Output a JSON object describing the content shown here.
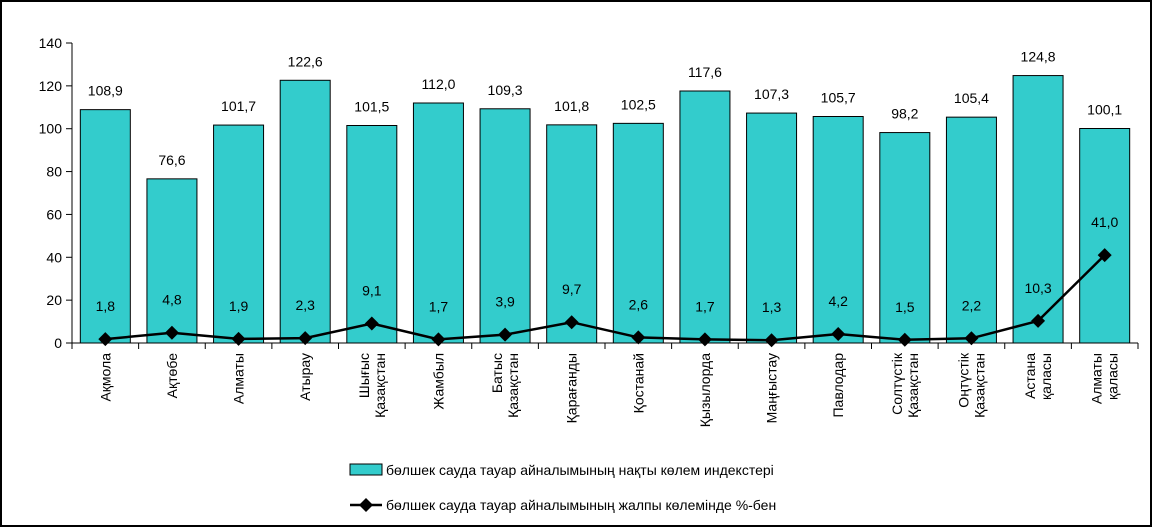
{
  "chart_data": {
    "type": "bar",
    "categories": [
      "Ақмола",
      "Ақтөбе",
      "Алматы",
      "Атырау",
      "Шығыс Қазақстан",
      "Жамбыл",
      "Батыс Қазақстан",
      "Қарағанды",
      "Қостанай",
      "Қызылорда",
      "Маңғыстау",
      "Павлодар",
      "Солтүстік Қазақстан",
      "Оңтүстік Қазақстан",
      "Астана қаласы",
      "Алматы қаласы"
    ],
    "series": [
      {
        "name": "бөлшек сауда тауар айналымының нақты көлем индекстері",
        "type": "bar",
        "color": "#33cccc",
        "values": [
          108.9,
          76.6,
          101.7,
          122.6,
          101.5,
          112.0,
          109.3,
          101.8,
          102.5,
          117.6,
          107.3,
          105.7,
          98.2,
          105.4,
          124.8,
          100.1
        ],
        "value_labels": [
          "108,9",
          "76,6",
          "101,7",
          "122,6",
          "101,5",
          "112,0",
          "109,3",
          "101,8",
          "102,5",
          "117,6",
          "107,3",
          "105,7",
          "98,2",
          "105,4",
          "124,8",
          "100,1"
        ]
      },
      {
        "name": "бөлшек сауда тауар айналымының жалпы көлемінде %-бен",
        "type": "line",
        "color": "#000000",
        "values": [
          1.8,
          4.8,
          1.9,
          2.3,
          9.1,
          1.7,
          3.9,
          9.7,
          2.6,
          1.7,
          1.3,
          4.2,
          1.5,
          2.2,
          10.3,
          41.0
        ],
        "value_labels": [
          "1,8",
          "4,8",
          "1,9",
          "2,3",
          "9,1",
          "1,7",
          "3,9",
          "9,7",
          "2,6",
          "1,7",
          "1,3",
          "4,2",
          "1,5",
          "2,2",
          "10,3",
          "41,0"
        ]
      }
    ],
    "ylim": [
      0,
      140
    ],
    "yticks": [
      0,
      20,
      40,
      60,
      80,
      100,
      120,
      140
    ],
    "legend": "bottom"
  }
}
